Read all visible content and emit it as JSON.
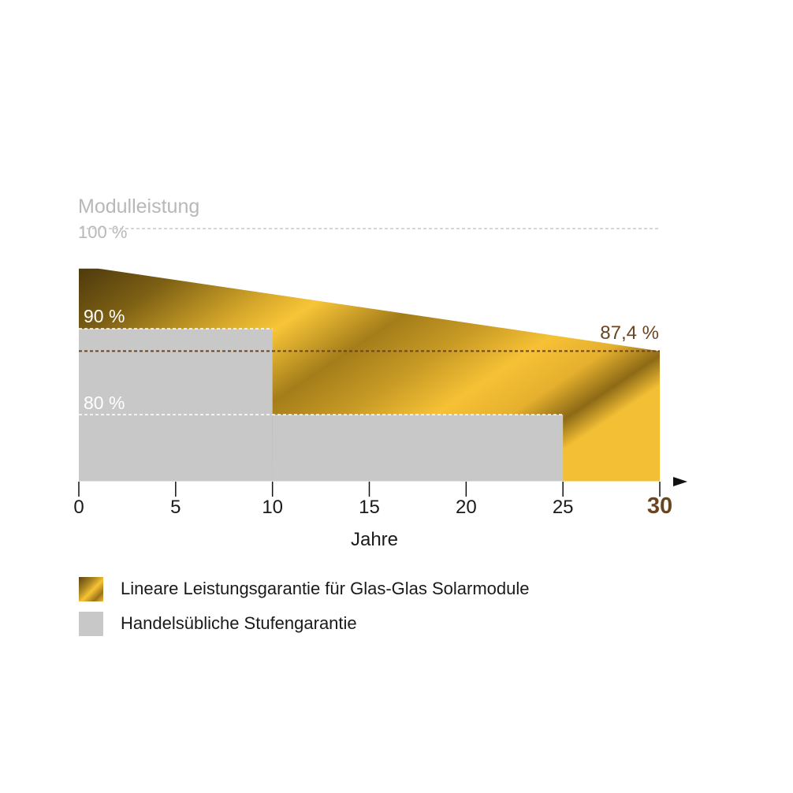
{
  "chart_data": {
    "type": "area",
    "ylabel": "Modulleistung",
    "xlabel": "Jahre",
    "xlim": [
      0,
      30
    ],
    "ylim": [
      70,
      100
    ],
    "x_ticks": [
      0,
      5,
      10,
      15,
      20,
      25,
      30
    ],
    "x_tick_labels": [
      "0",
      "5",
      "10",
      "15",
      "20",
      "25",
      "30"
    ],
    "highlight_tick": "30",
    "reference_lines": [
      {
        "value": 100,
        "label": "100 %"
      },
      {
        "value": 90,
        "label": "90 %"
      },
      {
        "value": 80,
        "label": "80 %"
      },
      {
        "value": 87.4,
        "label": "87,4 %"
      }
    ],
    "series": [
      {
        "name": "Lineare Leistungsgarantie für Glas-Glas Solarmodule",
        "kind": "linear",
        "x": [
          0,
          1,
          30
        ],
        "y": [
          97,
          97,
          87.4
        ]
      },
      {
        "name": "Handelsübliche Stufengarantie",
        "kind": "step",
        "steps": [
          {
            "from": 0,
            "to": 10,
            "value": 90
          },
          {
            "from": 10,
            "to": 25,
            "value": 80
          }
        ]
      }
    ],
    "legend_position": "bottom-left",
    "colors": {
      "linear": "#f0bc32",
      "step": "#c8c8c8",
      "accent": "#6b4420",
      "muted": "#b8b8b8"
    }
  }
}
